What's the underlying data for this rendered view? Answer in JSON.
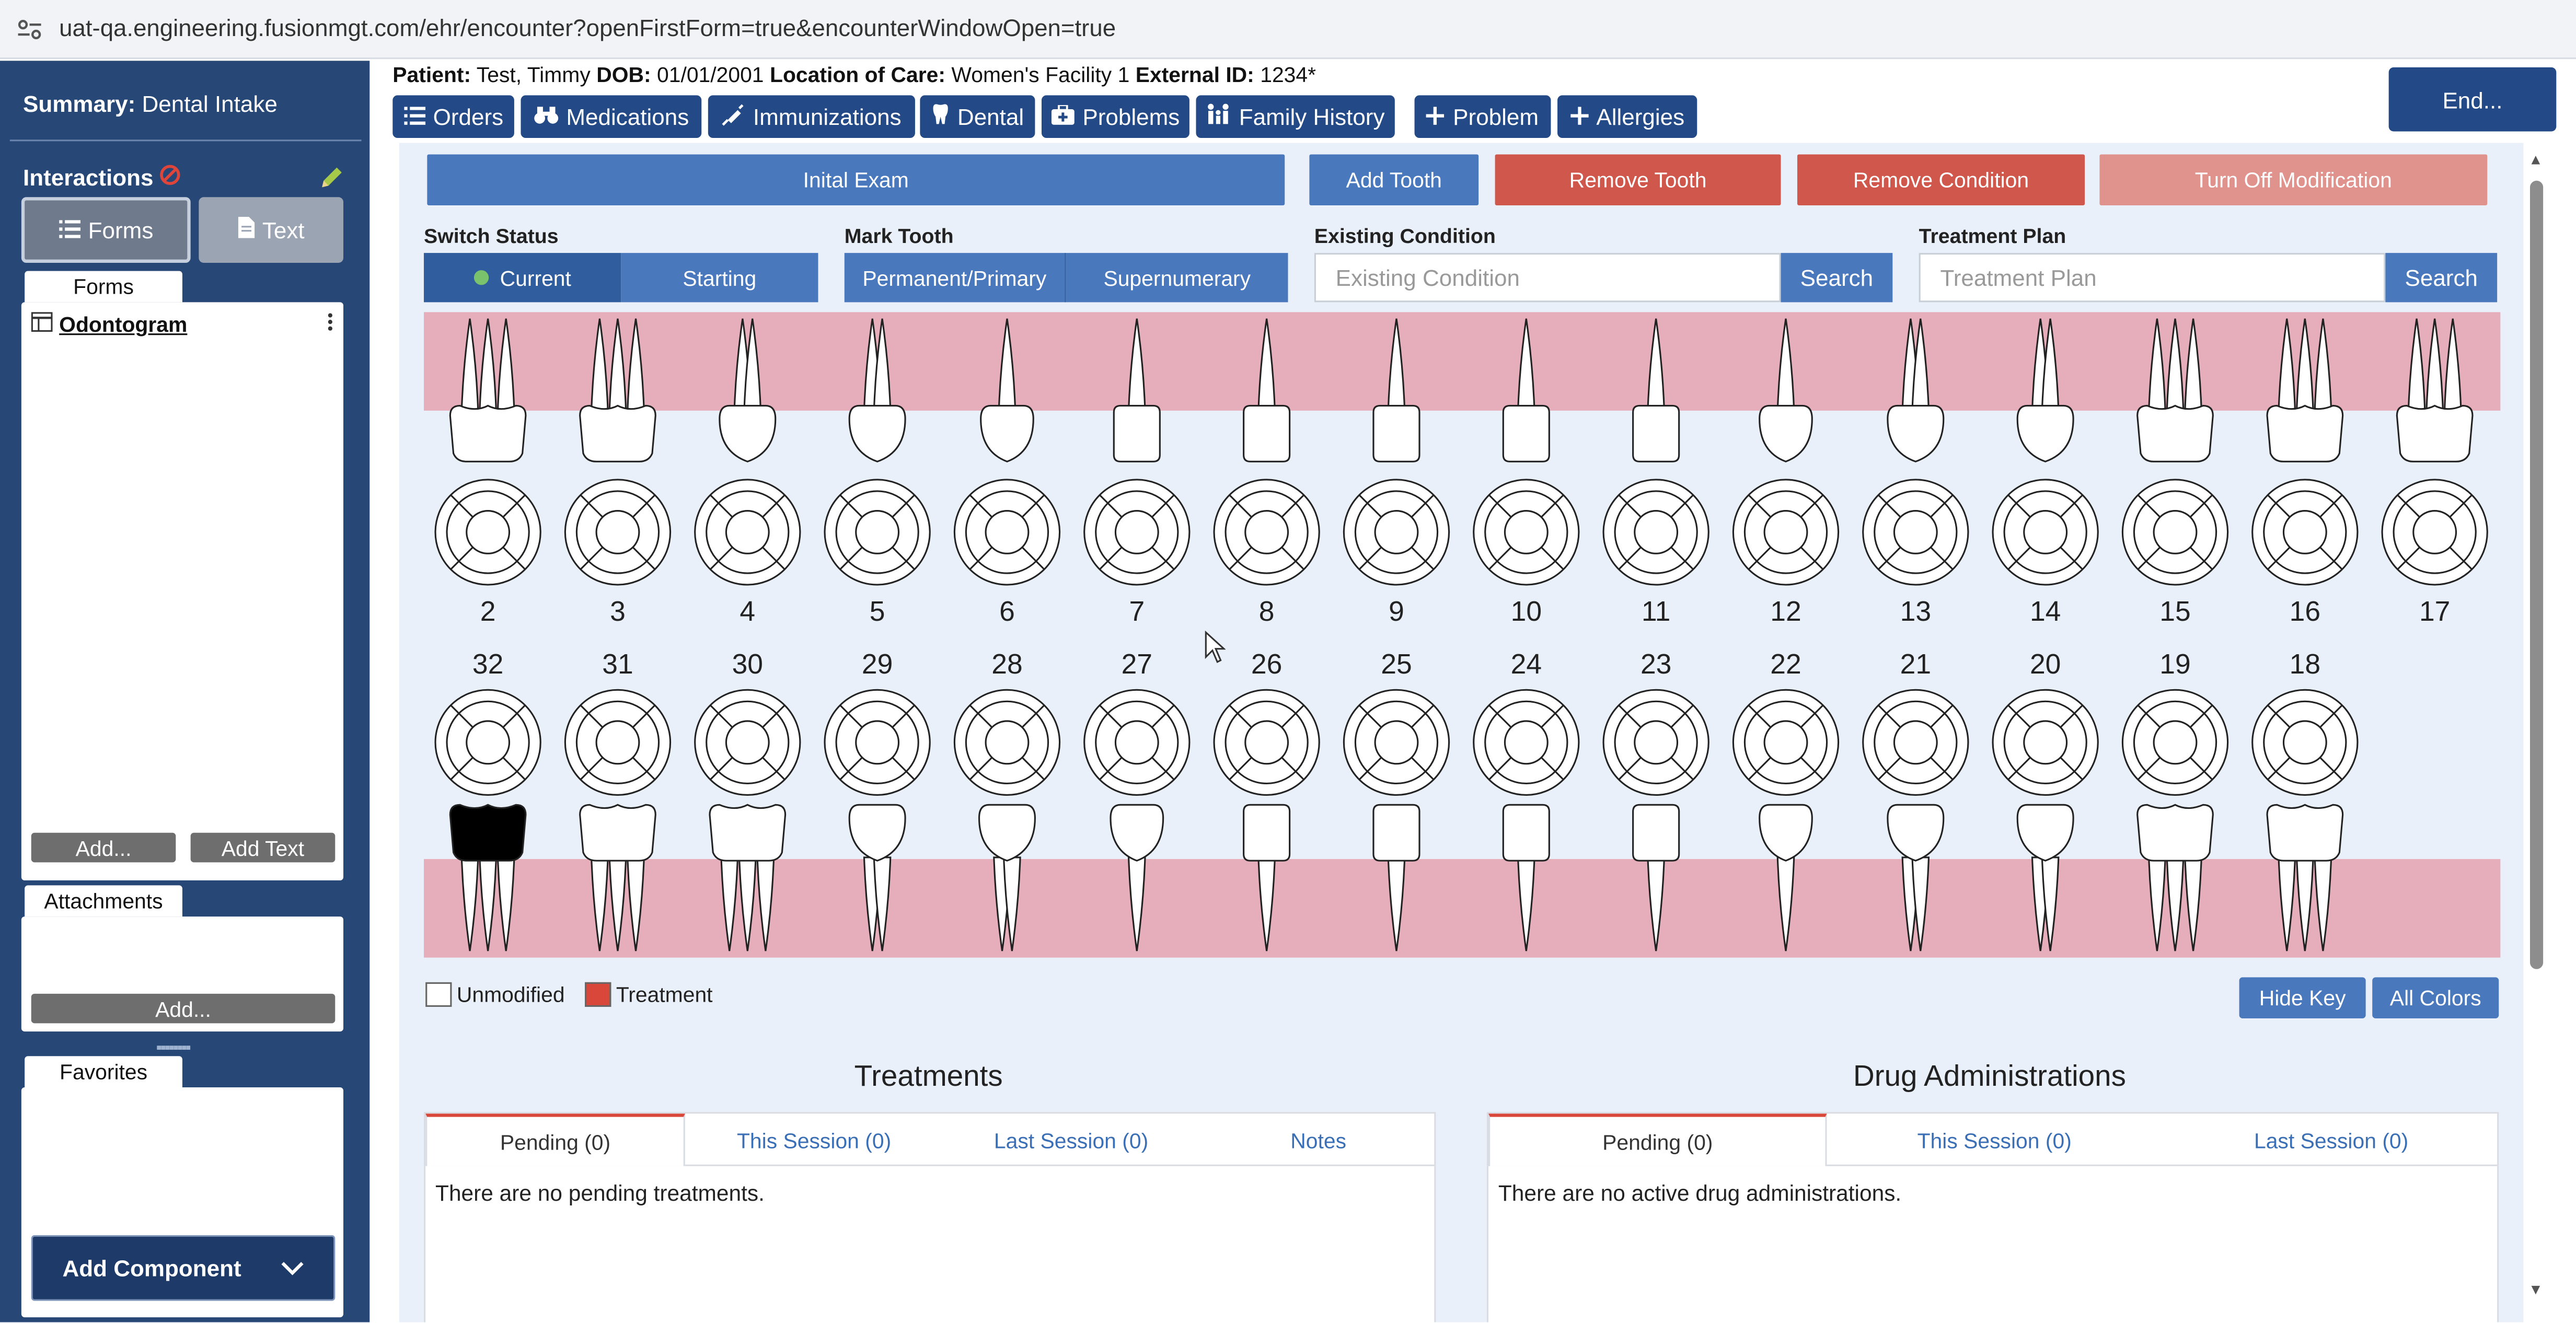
{
  "browser": {
    "url": "uat-qa.engineering.fusionmgt.com/ehr/encounter?openFirstForm=true&encounterWindowOpen=true"
  },
  "sidebar": {
    "summary_label": "Summary:",
    "summary_value": "Dental Intake",
    "interactions_label": "Interactions",
    "forms_button": "Forms",
    "text_button": "Text",
    "forms_tab": "Forms",
    "form_item": "Odontogram",
    "add_button": "Add...",
    "add_text_button": "Add Text",
    "attachments_tab": "Attachments",
    "attachments_add": "Add...",
    "favorites_tab": "Favorites",
    "add_component": "Add Component"
  },
  "patient": {
    "patient_label": "Patient:",
    "patient_value": "Test, Timmy",
    "dob_label": "DOB:",
    "dob_value": "01/01/2001",
    "loc_label": "Location of Care:",
    "loc_value": "Women's Facility 1",
    "ext_label": "External ID:",
    "ext_value": "1234*"
  },
  "nav": {
    "orders": "Orders",
    "medications": "Medications",
    "immunizations": "Immunizations",
    "dental": "Dental",
    "problems": "Problems",
    "family_history": "Family History",
    "add_problem": "Problem",
    "add_allergies": "Allergies",
    "end": "End..."
  },
  "toolbar": {
    "initial_exam": "Inital Exam",
    "add_tooth": "Add Tooth",
    "remove_tooth": "Remove Tooth",
    "remove_condition": "Remove Condition",
    "turn_off_modification": "Turn Off Modification"
  },
  "controls": {
    "switch_status_label": "Switch Status",
    "current": "Current",
    "starting": "Starting",
    "mark_tooth_label": "Mark Tooth",
    "permanent_primary": "Permanent/Primary",
    "supernumerary": "Supernumerary",
    "existing_condition_label": "Existing Condition",
    "existing_condition_placeholder": "Existing Condition",
    "treatment_plan_label": "Treatment Plan",
    "treatment_plan_placeholder": "Treatment Plan",
    "search": "Search"
  },
  "odontogram": {
    "upper_numbers": [
      "2",
      "3",
      "4",
      "5",
      "6",
      "7",
      "8",
      "9",
      "10",
      "11",
      "12",
      "13",
      "14",
      "15",
      "16",
      "17"
    ],
    "upper_types": [
      "molar",
      "molar",
      "premolar",
      "premolar",
      "canine",
      "incisor",
      "incisor",
      "incisor",
      "incisor",
      "incisor",
      "canine",
      "premolar",
      "premolar",
      "molar",
      "molar",
      "molar"
    ],
    "lower_numbers": [
      "32",
      "31",
      "30",
      "29",
      "28",
      "27",
      "26",
      "25",
      "24",
      "23",
      "22",
      "21",
      "20",
      "19",
      "18"
    ],
    "lower_types": [
      "molar",
      "molar",
      "molar",
      "premolar",
      "premolar",
      "canine",
      "incisor",
      "incisor",
      "incisor",
      "incisor",
      "canine",
      "premolar",
      "premolar",
      "molar",
      "molar"
    ],
    "lower_treated": [
      "32"
    ],
    "colors": {
      "gum": "#e6aebb",
      "treated": "#000000",
      "tooth": "#ffffff"
    }
  },
  "key": {
    "unmodified": "Unmodified",
    "treatment": "Treatment",
    "treatment_color": "#d9473a",
    "hide_key": "Hide Key",
    "all_colors": "All Colors"
  },
  "treatments": {
    "title": "Treatments",
    "tabs": [
      "Pending (0)",
      "This Session (0)",
      "Last Session (0)",
      "Notes"
    ],
    "empty": "There are no pending treatments."
  },
  "drugs": {
    "title": "Drug Administrations",
    "tabs": [
      "Pending (0)",
      "This Session (0)",
      "Last Session (0)"
    ],
    "empty": "There are no active drug administrations."
  }
}
